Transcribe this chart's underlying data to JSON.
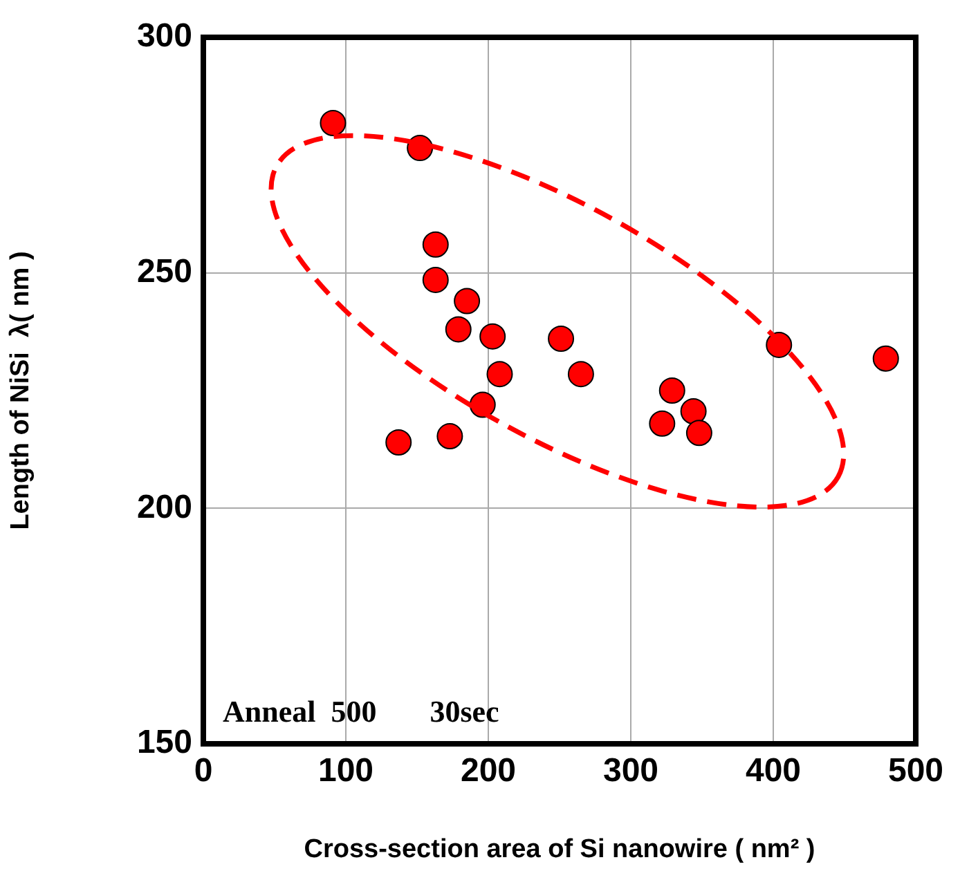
{
  "chart_data": {
    "type": "scatter",
    "xlabel": "Cross-section area of Si nanowire ( nm² )",
    "ylabel": "Length of NiSi  λ( nm )",
    "series": [
      {
        "color": "#ff0000",
        "x": [
          91,
          152,
          163,
          163,
          185,
          179,
          203,
          208,
          196,
          173,
          137,
          251,
          265,
          329,
          322,
          344,
          348,
          404,
          479
        ],
        "values": [
          281.8,
          276.5,
          256,
          248.5,
          244,
          238,
          236.5,
          228.5,
          222,
          215.3,
          214,
          236,
          228.5,
          225,
          218,
          220.6,
          216,
          234.7,
          231.8
        ]
      }
    ],
    "xlim": [
      0,
      500
    ],
    "xticks": [
      0,
      100,
      200,
      300,
      400,
      500
    ],
    "ylim": [
      150,
      300
    ],
    "yticks": [
      150,
      200,
      250,
      300
    ],
    "grid": true,
    "legend": false,
    "marker": "circle",
    "annotations": [
      "Anneal  500       30sec"
    ]
  }
}
